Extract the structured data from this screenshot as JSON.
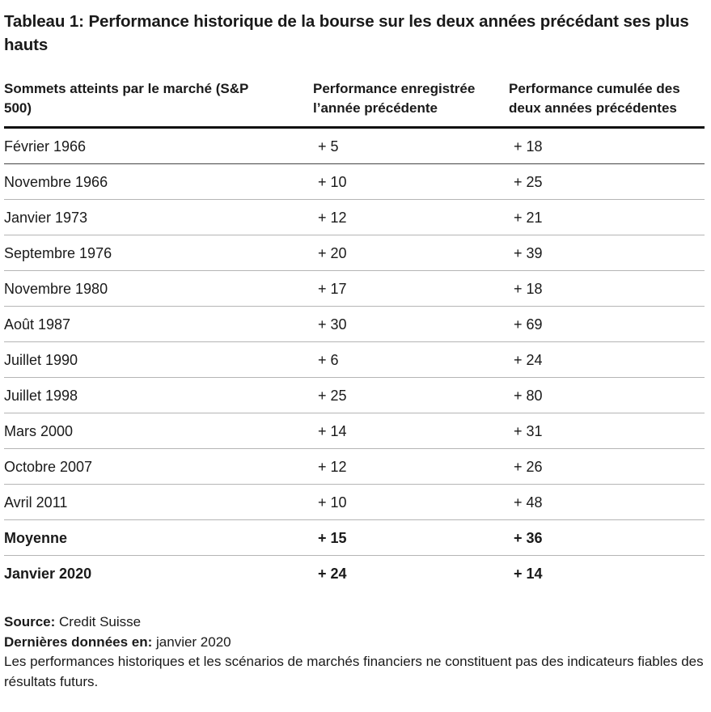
{
  "title": "Tableau 1: Performance historique de la bourse sur les deux années précédant ses plus hauts",
  "table": {
    "headers": [
      "Sommets atteints par le marché (S&P 500)",
      "Performance enregistrée l’année précédente",
      "Performance cumulée des deux années précédentes"
    ],
    "rows": [
      {
        "date": "Février 1966",
        "prev_year": "+ 5",
        "two_years": "+ 18"
      },
      {
        "date": "Novembre 1966",
        "prev_year": "+ 10",
        "two_years": "+ 25"
      },
      {
        "date": "Janvier 1973",
        "prev_year": "+ 12",
        "two_years": "+ 21"
      },
      {
        "date": "Septembre 1976",
        "prev_year": "+ 20",
        "two_years": "+ 39"
      },
      {
        "date": "Novembre 1980",
        "prev_year": "+ 17",
        "two_years": "+ 18"
      },
      {
        "date": "Août 1987",
        "prev_year": "+ 30",
        "two_years": "+ 69"
      },
      {
        "date": "Juillet 1990",
        "prev_year": "+ 6",
        "two_years": "+ 24"
      },
      {
        "date": "Juillet 1998",
        "prev_year": "+ 25",
        "two_years": "+ 80"
      },
      {
        "date": "Mars 2000",
        "prev_year": "+ 14",
        "two_years": "+ 31"
      },
      {
        "date": "Octobre 2007",
        "prev_year": "+ 12",
        "two_years": "+ 26"
      },
      {
        "date": "Avril 2011",
        "prev_year": "+ 10",
        "two_years": "+ 48"
      },
      {
        "date": "Moyenne",
        "prev_year": "+ 15",
        "two_years": "+ 36"
      },
      {
        "date": "Janvier 2020",
        "prev_year": "+ 24",
        "two_years": "+ 14"
      }
    ]
  },
  "footer": {
    "source_label": "Source:",
    "source_value": " Credit Suisse",
    "last_data_label": "Dernières données en:",
    "last_data_value": " janvier 2020",
    "disclaimer": "Les performances historiques et les scénarios de marchés financiers ne constituent pas des indicateurs fiables des résultats futurs."
  }
}
